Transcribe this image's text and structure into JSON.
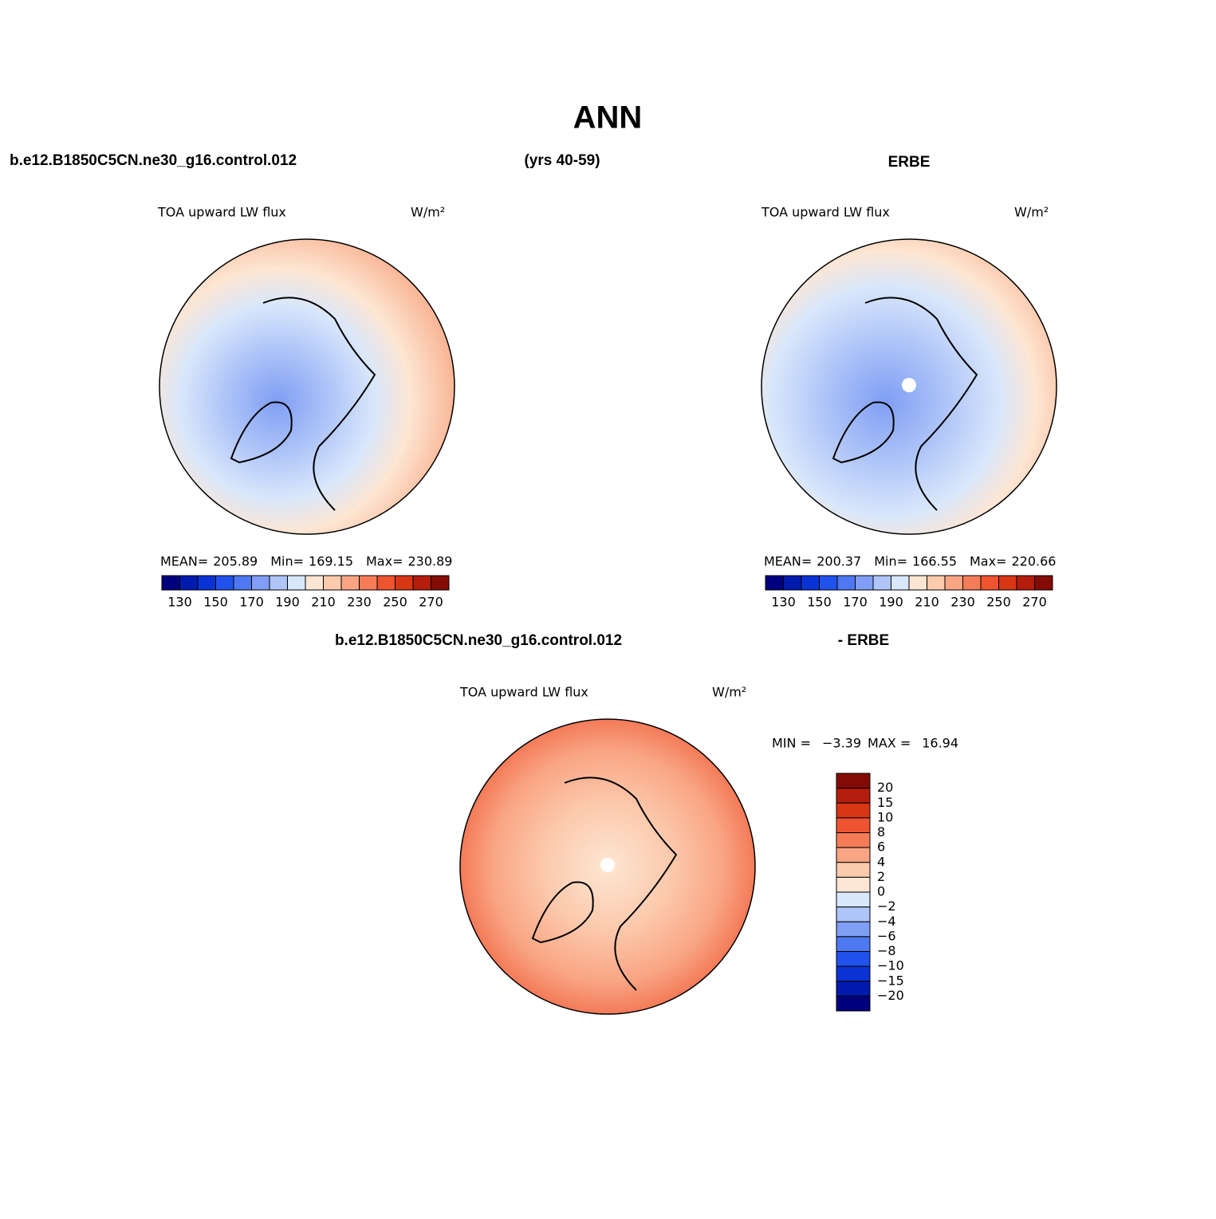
{
  "title": "ANN",
  "header": {
    "case": "b.e12.B1850C5CN.ne30_g16.control.012",
    "years": "(yrs 40-59)",
    "obs": "ERBE"
  },
  "panels": [
    {
      "variable": "TOA upward LW flux",
      "units": "W/m²",
      "stats": [
        {
          "label": "MEAN=",
          "value": "205.89"
        },
        {
          "label": "Min=",
          "value": "169.15"
        },
        {
          "label": "Max=",
          "value": "230.89"
        }
      ],
      "colorbar": {
        "labels": [
          "130",
          "150",
          "170",
          "190",
          "210",
          "230",
          "250",
          "270"
        ],
        "colors": [
          "#00007f",
          "#001aae",
          "#0a33d6",
          "#2252ee",
          "#4d78f1",
          "#7f9ef4",
          "#afc5f8",
          "#d9e7fb",
          "#fde6d3",
          "#fccaad",
          "#f9a584",
          "#f57c58",
          "#ee5430",
          "#d83614",
          "#b41d0c",
          "#840b05"
        ]
      }
    },
    {
      "variable": "TOA upward LW flux",
      "units": "W/m²",
      "stats": [
        {
          "label": "MEAN=",
          "value": "200.37"
        },
        {
          "label": "Min=",
          "value": "166.55"
        },
        {
          "label": "Max=",
          "value": "220.66"
        }
      ],
      "colorbar": {
        "labels": [
          "130",
          "150",
          "170",
          "190",
          "210",
          "230",
          "250",
          "270"
        ],
        "colors": [
          "#00007f",
          "#001aae",
          "#0a33d6",
          "#2252ee",
          "#4d78f1",
          "#7f9ef4",
          "#afc5f8",
          "#d9e7fb",
          "#fde6d3",
          "#fccaad",
          "#f9a584",
          "#f57c58",
          "#ee5430",
          "#d83614",
          "#b41d0c",
          "#840b05"
        ]
      }
    }
  ],
  "difference": {
    "case": "b.e12.B1850C5CN.ne30_g16.control.012",
    "obs": "- ERBE",
    "variable": "TOA upward LW flux",
    "units": "W/m²",
    "stats": [
      {
        "label": "MIN =",
        "value": "−3.39"
      },
      {
        "label": "MAX =",
        "value": "16.94"
      }
    ],
    "colorbar": {
      "labels": [
        "20",
        "15",
        "10",
        "8",
        "6",
        "4",
        "2",
        "0",
        "−2",
        "−4",
        "−6",
        "−8",
        "−10",
        "−15",
        "−20"
      ],
      "colors": [
        "#840b05",
        "#b41d0c",
        "#d83614",
        "#ee5430",
        "#f57c58",
        "#f9a584",
        "#fccaad",
        "#fde6d3",
        "#d9e7fb",
        "#afc5f8",
        "#7f9ef4",
        "#4d78f1",
        "#2252ee",
        "#0a33d6",
        "#001aae",
        "#00007f"
      ]
    }
  }
}
